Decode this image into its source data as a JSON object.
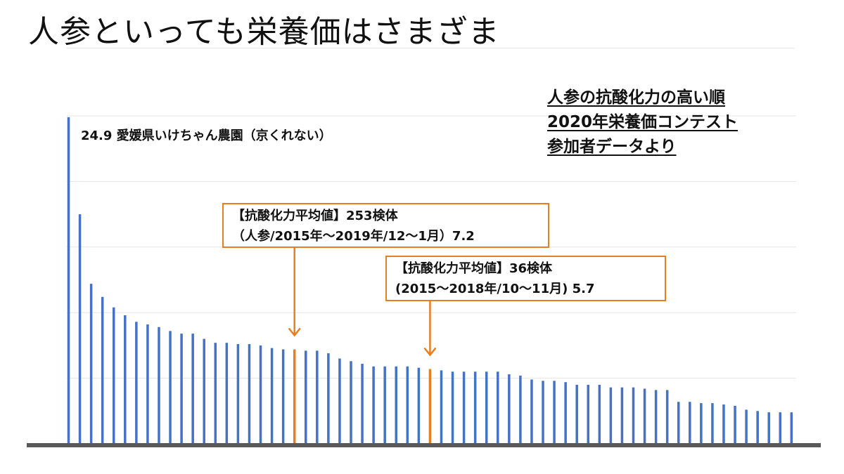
{
  "title": "人参といっても栄養価はさまざま",
  "note": {
    "line1": "人参の抗酸化力の高い順",
    "line2": "2020年栄養価コンテスト",
    "line3": "参加者データより"
  },
  "callout_a": {
    "line1": "【抗酸化力平均値】253検体",
    "line2": "（人参/2015年～2019年/12～1月）7.2"
  },
  "callout_b": {
    "line1": "【抗酸化力平均値】36検体",
    "line2": "(2015～2018年/10～11月) 5.7"
  },
  "colors": {
    "bar": "#4472c4",
    "highlight": "#e67e22",
    "axis": "#595959",
    "grid": "#e6e6e6"
  },
  "chart_data": {
    "type": "bar",
    "title": "",
    "xlabel": "",
    "ylabel": "",
    "ylim": [
      0,
      25
    ],
    "grid": true,
    "values": [
      24.9,
      17.5,
      12.2,
      11.2,
      10.4,
      9.8,
      9.3,
      9.1,
      8.9,
      8.6,
      8.4,
      8.4,
      8.0,
      7.7,
      7.7,
      7.6,
      7.6,
      7.5,
      7.3,
      7.2,
      7.2,
      7.1,
      7.1,
      6.9,
      6.5,
      6.3,
      6.1,
      5.9,
      5.9,
      5.9,
      5.9,
      5.8,
      5.7,
      5.6,
      5.5,
      5.5,
      5.5,
      5.5,
      5.5,
      5.3,
      5.2,
      4.9,
      4.8,
      4.8,
      4.7,
      4.5,
      4.5,
      4.5,
      4.3,
      4.3,
      4.3,
      4.2,
      4.1,
      4.1,
      3.2,
      3.2,
      3.1,
      3.1,
      3.0,
      2.9,
      2.6,
      2.5,
      2.4,
      2.4,
      2.4
    ],
    "highlight": [
      {
        "index": 20,
        "label": "7.2"
      },
      {
        "index": 32,
        "label": "5.7"
      }
    ],
    "annotations": [
      {
        "index": 0,
        "text": "24.9 愛媛県いけちゃん農園（京くれない）"
      }
    ]
  }
}
